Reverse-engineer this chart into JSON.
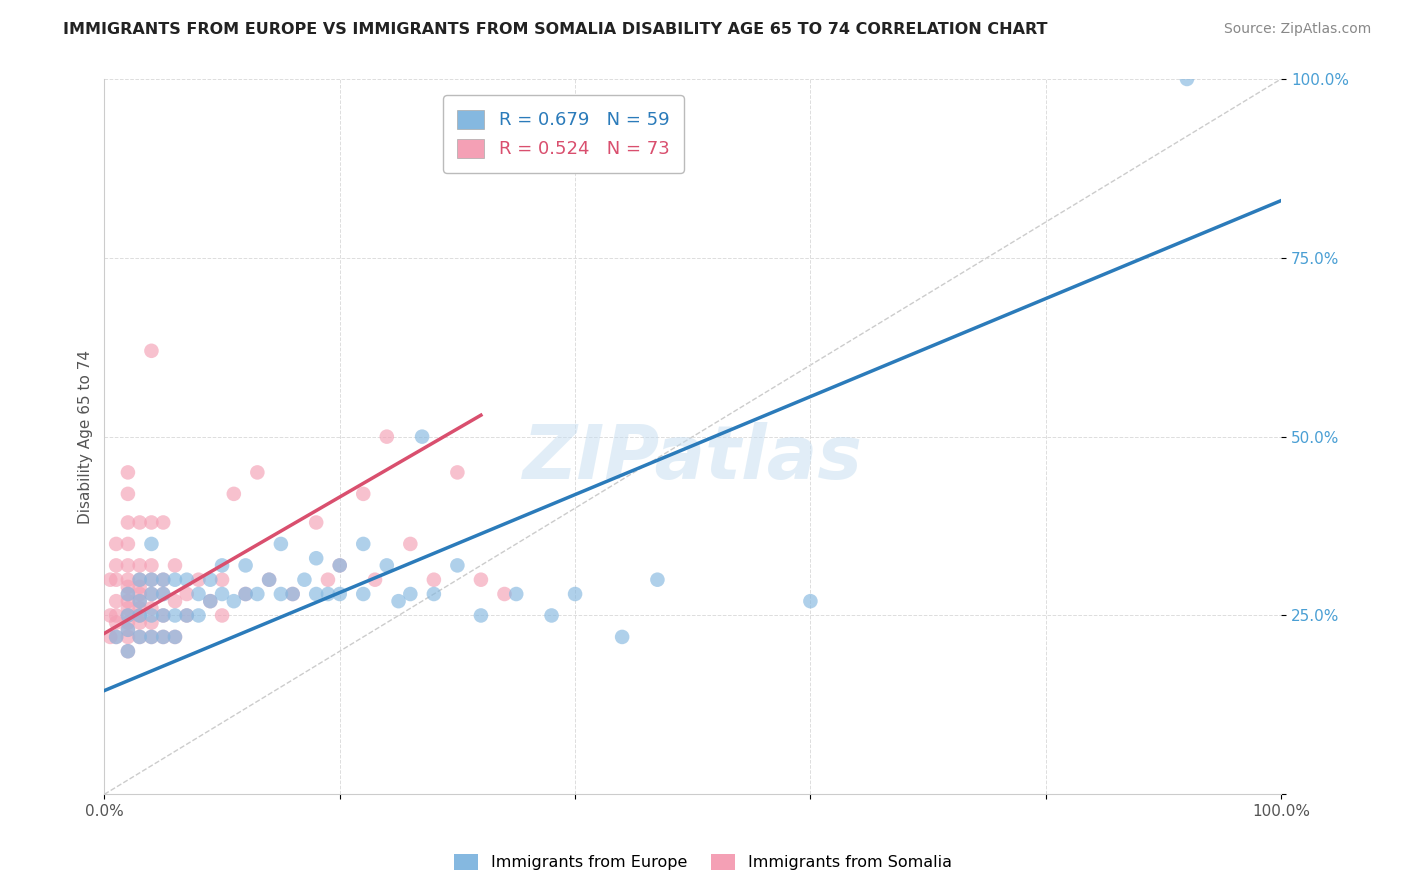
{
  "title": "IMMIGRANTS FROM EUROPE VS IMMIGRANTS FROM SOMALIA DISABILITY AGE 65 TO 74 CORRELATION CHART",
  "source": "Source: ZipAtlas.com",
  "ylabel": "Disability Age 65 to 74",
  "xlim": [
    0,
    1.0
  ],
  "ylim": [
    0,
    1.0
  ],
  "europe_color": "#85b8e0",
  "somalia_color": "#f4a0b5",
  "europe_line_color": "#2b7bba",
  "somalia_line_color": "#d94f6e",
  "diagonal_color": "#cccccc",
  "R_europe": 0.679,
  "N_europe": 59,
  "R_somalia": 0.524,
  "N_somalia": 73,
  "watermark": "ZIPatlas",
  "background_color": "#ffffff",
  "grid_color": "#dddddd",
  "europe_line_x0": 0.0,
  "europe_line_y0": 0.145,
  "europe_line_x1": 1.0,
  "europe_line_y1": 0.83,
  "somalia_line_x0": 0.0,
  "somalia_line_y0": 0.225,
  "somalia_line_x1": 0.32,
  "somalia_line_y1": 0.53,
  "europe_scatter_x": [
    0.01,
    0.02,
    0.02,
    0.02,
    0.02,
    0.03,
    0.03,
    0.03,
    0.03,
    0.04,
    0.04,
    0.04,
    0.04,
    0.04,
    0.05,
    0.05,
    0.05,
    0.05,
    0.06,
    0.06,
    0.06,
    0.07,
    0.07,
    0.08,
    0.08,
    0.09,
    0.09,
    0.1,
    0.1,
    0.11,
    0.12,
    0.12,
    0.13,
    0.14,
    0.15,
    0.15,
    0.16,
    0.17,
    0.18,
    0.18,
    0.19,
    0.2,
    0.2,
    0.22,
    0.22,
    0.24,
    0.25,
    0.26,
    0.27,
    0.28,
    0.3,
    0.32,
    0.35,
    0.38,
    0.4,
    0.44,
    0.47,
    0.6,
    0.92
  ],
  "europe_scatter_y": [
    0.22,
    0.2,
    0.23,
    0.25,
    0.28,
    0.22,
    0.25,
    0.27,
    0.3,
    0.22,
    0.25,
    0.28,
    0.3,
    0.35,
    0.22,
    0.25,
    0.28,
    0.3,
    0.22,
    0.25,
    0.3,
    0.25,
    0.3,
    0.25,
    0.28,
    0.27,
    0.3,
    0.28,
    0.32,
    0.27,
    0.28,
    0.32,
    0.28,
    0.3,
    0.28,
    0.35,
    0.28,
    0.3,
    0.28,
    0.33,
    0.28,
    0.28,
    0.32,
    0.35,
    0.28,
    0.32,
    0.27,
    0.28,
    0.5,
    0.28,
    0.32,
    0.25,
    0.28,
    0.25,
    0.28,
    0.22,
    0.3,
    0.27,
    1.0
  ],
  "somalia_scatter_x": [
    0.005,
    0.005,
    0.005,
    0.01,
    0.01,
    0.01,
    0.01,
    0.01,
    0.01,
    0.01,
    0.02,
    0.02,
    0.02,
    0.02,
    0.02,
    0.02,
    0.02,
    0.02,
    0.02,
    0.02,
    0.02,
    0.02,
    0.02,
    0.02,
    0.02,
    0.03,
    0.03,
    0.03,
    0.03,
    0.03,
    0.03,
    0.03,
    0.03,
    0.03,
    0.03,
    0.04,
    0.04,
    0.04,
    0.04,
    0.04,
    0.04,
    0.04,
    0.04,
    0.05,
    0.05,
    0.05,
    0.05,
    0.05,
    0.06,
    0.06,
    0.06,
    0.07,
    0.07,
    0.08,
    0.09,
    0.1,
    0.1,
    0.11,
    0.12,
    0.13,
    0.14,
    0.16,
    0.18,
    0.19,
    0.2,
    0.22,
    0.23,
    0.24,
    0.26,
    0.28,
    0.3,
    0.32,
    0.34
  ],
  "somalia_scatter_y": [
    0.22,
    0.25,
    0.3,
    0.22,
    0.24,
    0.25,
    0.27,
    0.3,
    0.32,
    0.35,
    0.2,
    0.22,
    0.23,
    0.24,
    0.25,
    0.26,
    0.27,
    0.28,
    0.29,
    0.3,
    0.32,
    0.35,
    0.38,
    0.42,
    0.45,
    0.22,
    0.24,
    0.25,
    0.26,
    0.27,
    0.28,
    0.29,
    0.3,
    0.32,
    0.38,
    0.22,
    0.24,
    0.26,
    0.28,
    0.3,
    0.32,
    0.38,
    0.62,
    0.22,
    0.25,
    0.28,
    0.3,
    0.38,
    0.22,
    0.27,
    0.32,
    0.25,
    0.28,
    0.3,
    0.27,
    0.25,
    0.3,
    0.42,
    0.28,
    0.45,
    0.3,
    0.28,
    0.38,
    0.3,
    0.32,
    0.42,
    0.3,
    0.5,
    0.35,
    0.3,
    0.45,
    0.3,
    0.28
  ]
}
